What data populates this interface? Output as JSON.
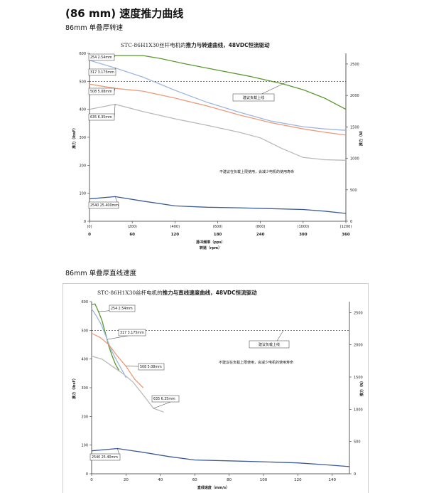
{
  "page": {
    "title": "(86 mm) 速度推力曲线",
    "section1_title": "86mm 单叠厚转速",
    "section2_title": "86mm 单叠厚直线速度"
  },
  "colors": {
    "green": "#5a9a2e",
    "light_blue": "#9db7e0",
    "orange": "#ee9a78",
    "gray": "#b9b9b9",
    "dark_blue": "#3b5c98",
    "dashed": "#222222"
  },
  "chart_data": [
    {
      "type": "line",
      "title_model": "STC-86H1X30丝杆电机的",
      "title_rest": "推力与转速曲线，48VDC恒流驱动",
      "xlabel_top": "脉冲频率（pps）",
      "xlabel_bottom": "转速（rpm）",
      "ylabel_left": "推力（lbsF）",
      "ylabel_right": "推力（N）",
      "xlim": [
        0,
        1200
      ],
      "ylim": [
        0,
        600
      ],
      "y2lim": [
        0,
        2669
      ],
      "x_ticks_top": [
        "(0)",
        "(200)",
        "(400)",
        "(600)",
        "(800)",
        "(1000)",
        "(1200)"
      ],
      "x_ticks_top_values": [
        0,
        200,
        400,
        600,
        800,
        1000,
        1200
      ],
      "x_ticks_bottom": [
        "0",
        "60",
        "120",
        "180",
        "240",
        "300",
        "360"
      ],
      "x_ticks_bottom_values": [
        0,
        200,
        400,
        600,
        800,
        1000,
        1200
      ],
      "y_ticks": [
        "0",
        "100",
        "200",
        "300",
        "400",
        "500",
        "600"
      ],
      "y2_ticks": [
        "0",
        "500",
        "1000",
        "1500",
        "2000",
        "2500"
      ],
      "dashed_line": 500,
      "annotations": {
        "recommend": "建议负载上线",
        "warning": "不建议在负载上限使用，会减少电机的使用寿命"
      },
      "series": [
        {
          "name": "254 2.54mm",
          "color": "#5a9a2e",
          "x": [
            0,
            120,
            250,
            330,
            450,
            600,
            750,
            900,
            1000,
            1100,
            1200
          ],
          "y": [
            590,
            592,
            592,
            582,
            562,
            540,
            518,
            492,
            470,
            440,
            400
          ]
        },
        {
          "name": "317 3.175mm",
          "color": "#9db7e0",
          "x": [
            0,
            120,
            250,
            400,
            550,
            700,
            850,
            1000,
            1100,
            1200
          ],
          "y": [
            575,
            548,
            515,
            468,
            425,
            390,
            358,
            338,
            330,
            325
          ]
        },
        {
          "name": "508 5.08mm",
          "color": "#ee9a78",
          "x": [
            0,
            120,
            250,
            400,
            550,
            700,
            850,
            1000,
            1100,
            1200
          ],
          "y": [
            490,
            475,
            465,
            440,
            412,
            380,
            352,
            330,
            318,
            308
          ]
        },
        {
          "name": "635 6.35mm",
          "color": "#b9b9b9",
          "x": [
            0,
            120,
            250,
            400,
            550,
            700,
            800,
            900,
            1000,
            1100,
            1200
          ],
          "y": [
            400,
            418,
            392,
            366,
            343,
            318,
            298,
            260,
            228,
            220,
            218
          ]
        },
        {
          "name": "2540 25.400mm",
          "color": "#3b5c98",
          "x": [
            0,
            120,
            250,
            400,
            550,
            700,
            850,
            1000,
            1100,
            1200
          ],
          "y": [
            80,
            88,
            72,
            55,
            50,
            48,
            45,
            42,
            36,
            28
          ]
        }
      ]
    },
    {
      "type": "line",
      "title_model": "STC-86H1X30丝杆电机的",
      "title_rest": "推力与直线速度曲线，48VDC恒流驱动",
      "xlabel": "直线速度（mm/s）",
      "ylabel_left": "推力（lbsF）",
      "ylabel_right": "推力（N）",
      "xlim": [
        0,
        150
      ],
      "ylim": [
        0,
        600
      ],
      "y2lim": [
        0,
        2669
      ],
      "x_ticks": [
        "0",
        "20",
        "40",
        "60",
        "80",
        "100",
        "120",
        "140"
      ],
      "x_ticks_values": [
        0,
        20,
        40,
        60,
        80,
        100,
        120,
        140
      ],
      "y_ticks": [
        "0",
        "100",
        "200",
        "300",
        "400",
        "500",
        "600"
      ],
      "y2_ticks": [
        "0",
        "500",
        "1000",
        "1500",
        "2000",
        "2500"
      ],
      "dashed_line": 500,
      "annotations": {
        "recommend": "建议负载上线",
        "warning": "不建议在负载上限使用，会减少电机的使用寿命"
      },
      "series": [
        {
          "name": "254 2.54mm",
          "color": "#5a9a2e",
          "x": [
            0,
            2,
            4,
            6,
            8,
            10,
            12,
            14,
            16
          ],
          "y": [
            590,
            592,
            565,
            535,
            490,
            445,
            410,
            380,
            360
          ]
        },
        {
          "name": "317 3.175mm",
          "color": "#9db7e0",
          "x": [
            0,
            3,
            6,
            9,
            12,
            15,
            18,
            20
          ],
          "y": [
            575,
            548,
            515,
            468,
            425,
            390,
            358,
            335
          ]
        },
        {
          "name": "508 5.08mm",
          "color": "#ee9a78",
          "x": [
            0,
            5,
            10,
            15,
            20,
            25,
            30
          ],
          "y": [
            490,
            475,
            450,
            410,
            375,
            330,
            300
          ]
        },
        {
          "name": "635 6.35mm",
          "color": "#b9b9b9",
          "x": [
            0,
            6,
            12,
            18,
            24,
            30,
            36,
            42
          ],
          "y": [
            410,
            400,
            375,
            350,
            320,
            275,
            228,
            215
          ]
        },
        {
          "name": "2540 25.40mm",
          "color": "#3b5c98",
          "x": [
            0,
            15,
            30,
            45,
            60,
            80,
            100,
            120,
            135,
            150
          ],
          "y": [
            80,
            88,
            75,
            60,
            48,
            45,
            42,
            38,
            32,
            25
          ]
        }
      ]
    }
  ]
}
